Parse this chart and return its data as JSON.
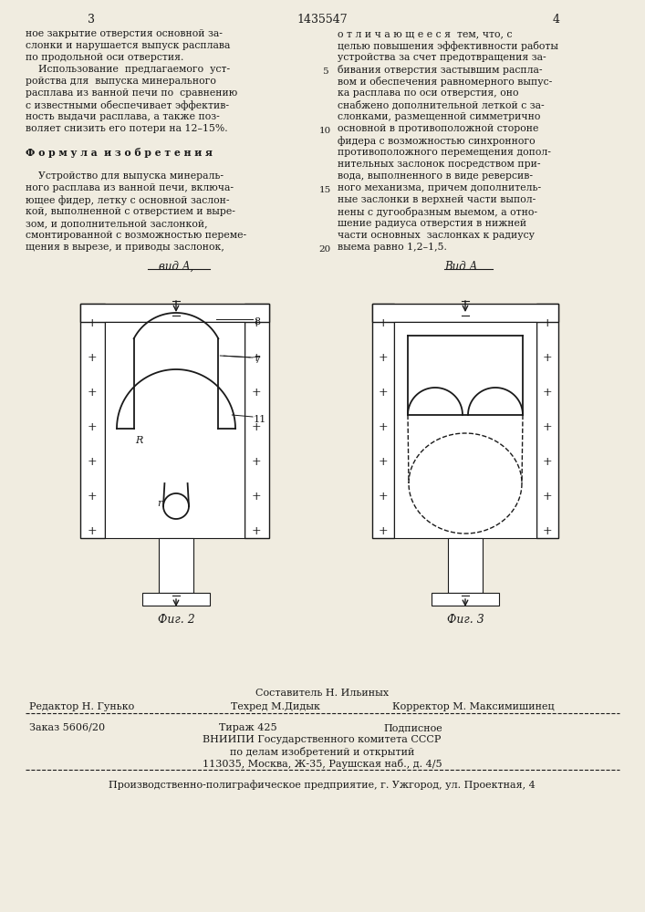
{
  "bg_color": "#f0ece0",
  "page_number_left": "3",
  "page_number_center": "1435547",
  "page_number_right": "4",
  "col1_text": [
    "ное закрытие отверстия основной за-",
    "слонки и нарушается выпуск расплава",
    "по продольной оси отверстия.",
    "    Использование  предлагаемого  уст-",
    "ройства для  выпуска минерального",
    "расплава из ванной печи по  сравнению",
    "с известными обеспечивает эффектив-",
    "ность выдачи расплава, а также поз-",
    "воляет снизить его потери на 12–15%.",
    "",
    "Ф о р м у л а  и з о б р е т е н и я",
    "",
    "    Устройство для выпуска минераль-",
    "ного расплава из ванной печи, включа-",
    "ющее фидер, летку с основной заслон-",
    "кой, выполненной с отверстием и выре-",
    "зом, и дополнительной заслонкой,",
    "смонтированной с возможностью переме-",
    "щения в вырезе, и приводы заслонок,"
  ],
  "col2_text": [
    "о т л и ч а ю щ е е с я  тем, что, с",
    "целью повышения эффективности работы",
    "устройства за счет предотвращения за-",
    "бивания отверстия застывшим распла-",
    "вом и обеспечения равномерного выпус-",
    "ка расплава по оси отверстия, оно",
    "снабжено дополнительной леткой с за-",
    "слонками, размещенной симметрично",
    "основной в противоположной стороне",
    "фидера с возможностью синхронного",
    "противоположного перемещения допол-",
    "нительных заслонок посредством при-",
    "вода, выполненного в виде реверсив-",
    "ного механизма, причем дополнитель-",
    "ные заслонки в верхней части выпол-",
    "нены с дугообразным выемом, а отно-",
    "шение радиуса отверстия в нижней",
    "части основных  заслонках к радиусу",
    "выема равно 1,2–1,5."
  ],
  "fig2_label": "вид А,",
  "fig3_label": "Вид А",
  "fig2_caption": "Фиг. 2",
  "fig3_caption": "Фиг. 3",
  "footer_line1": "Составитель Н. Ильиных",
  "footer_line2_left": "Редактор Н. Гунько",
  "footer_line2_mid": "Техред М.Дидык",
  "footer_line2_right": "Корректор М. Максимишинец",
  "footer_line3_left": "Заказ 5606/20",
  "footer_line3_mid": "Тираж 425",
  "footer_line3_right": "Подписное",
  "footer_line4": "ВНИИПИ Государственного комитета СССР",
  "footer_line5": "по делам изобретений и открытий",
  "footer_line6": "113035, Москва, Ж-35, Раушская наб., д. 4/5",
  "footer_line7": "Производственно-полиграфическое предприятие, г. Ужгород, ул. Проектная, 4"
}
